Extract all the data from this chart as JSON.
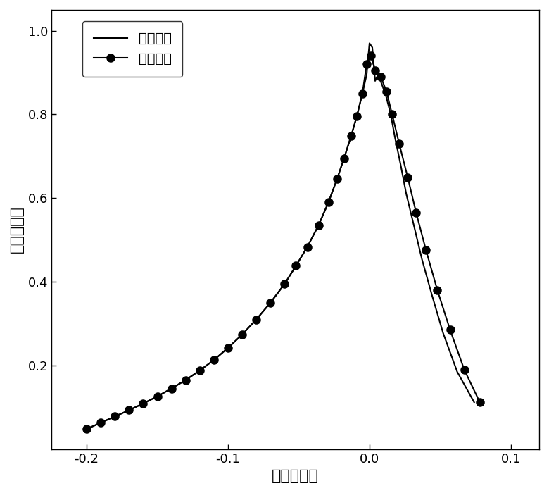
{
  "title": "",
  "xlabel": "离驻点距离",
  "ylabel": "水滴收集率",
  "xlim": [
    -0.225,
    0.12
  ],
  "ylim": [
    0.0,
    1.05
  ],
  "xticks": [
    -0.2,
    -0.1,
    0.0,
    0.1
  ],
  "yticks": [
    0.2,
    0.4,
    0.6,
    0.8,
    1.0
  ],
  "legend_labels": [
    "真实条件",
    "实验条件"
  ],
  "line_color": "#000000",
  "dot_color": "#000000",
  "background_color": "#ffffff",
  "line_x": [
    -0.2,
    -0.19,
    -0.18,
    -0.17,
    -0.16,
    -0.15,
    -0.14,
    -0.13,
    -0.12,
    -0.11,
    -0.1,
    -0.09,
    -0.08,
    -0.07,
    -0.06,
    -0.052,
    -0.044,
    -0.036,
    -0.029,
    -0.023,
    -0.018,
    -0.013,
    -0.009,
    -0.005,
    -0.002,
    0.0,
    0.002,
    0.004,
    0.006,
    0.009,
    0.012,
    0.015,
    0.018,
    0.022,
    0.026,
    0.031,
    0.037,
    0.044,
    0.052,
    0.062,
    0.074
  ],
  "line_y": [
    0.048,
    0.063,
    0.078,
    0.093,
    0.109,
    0.126,
    0.145,
    0.165,
    0.188,
    0.213,
    0.242,
    0.274,
    0.31,
    0.35,
    0.395,
    0.438,
    0.483,
    0.535,
    0.59,
    0.645,
    0.695,
    0.748,
    0.795,
    0.85,
    0.895,
    0.97,
    0.96,
    0.88,
    0.895,
    0.87,
    0.84,
    0.8,
    0.745,
    0.68,
    0.61,
    0.54,
    0.455,
    0.37,
    0.278,
    0.185,
    0.112
  ],
  "dot_x": [
    -0.2,
    -0.19,
    -0.18,
    -0.17,
    -0.16,
    -0.15,
    -0.14,
    -0.13,
    -0.12,
    -0.11,
    -0.1,
    -0.09,
    -0.08,
    -0.07,
    -0.06,
    -0.052,
    -0.044,
    -0.036,
    -0.029,
    -0.023,
    -0.018,
    -0.013,
    -0.009,
    -0.005,
    -0.002,
    0.001,
    0.004,
    0.008,
    0.012,
    0.016,
    0.021,
    0.027,
    0.033,
    0.04,
    0.048,
    0.057,
    0.067,
    0.078
  ],
  "dot_y": [
    0.048,
    0.063,
    0.078,
    0.093,
    0.109,
    0.126,
    0.145,
    0.165,
    0.188,
    0.213,
    0.242,
    0.274,
    0.31,
    0.35,
    0.395,
    0.438,
    0.483,
    0.535,
    0.59,
    0.645,
    0.695,
    0.748,
    0.795,
    0.85,
    0.92,
    0.94,
    0.905,
    0.89,
    0.855,
    0.8,
    0.73,
    0.65,
    0.565,
    0.475,
    0.38,
    0.285,
    0.19,
    0.112
  ]
}
